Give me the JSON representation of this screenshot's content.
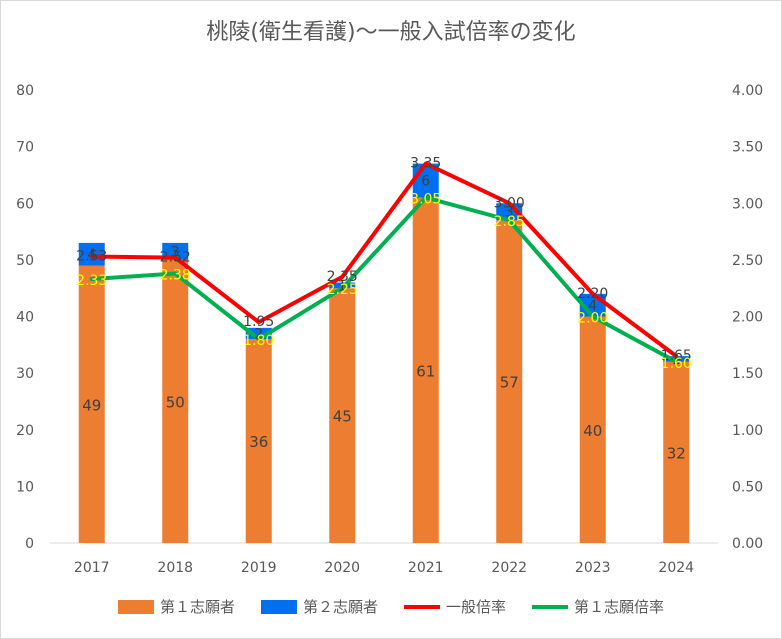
{
  "chart_data": {
    "type": "bar",
    "title": "桃陵(衛生看護)～一般入試倍率の変化",
    "categories": [
      "2017",
      "2018",
      "2019",
      "2020",
      "2021",
      "2022",
      "2023",
      "2024"
    ],
    "y_left": {
      "ylim": [
        0,
        80
      ],
      "ticks": [
        "0",
        "10",
        "20",
        "30",
        "40",
        "50",
        "60",
        "70",
        "80"
      ]
    },
    "y_right": {
      "ylim": [
        0,
        4
      ],
      "ticks": [
        "0.00",
        "0.50",
        "1.00",
        "1.50",
        "2.00",
        "2.50",
        "3.00",
        "3.50",
        "4.00"
      ]
    },
    "grid": false,
    "legend_position": "bottom",
    "series": [
      {
        "name": "第１志願者",
        "kind": "bar",
        "axis": "left",
        "color": "#ED7D31",
        "values": [
          49,
          50,
          36,
          45,
          61,
          57,
          40,
          32
        ],
        "labels": [
          "49",
          "50",
          "36",
          "45",
          "61",
          "57",
          "40",
          "32"
        ]
      },
      {
        "name": "第２志願者",
        "kind": "bar-stacked",
        "axis": "left",
        "color": "#0070F0",
        "values": [
          4,
          3,
          2,
          1,
          6,
          3,
          4,
          1
        ],
        "labels": [
          "4",
          "3",
          "2",
          "1",
          "6",
          "3",
          "4",
          "1"
        ]
      },
      {
        "name": "一般倍率",
        "kind": "line",
        "axis": "right",
        "color": "#FF0000",
        "values": [
          2.53,
          2.52,
          1.95,
          2.35,
          3.35,
          3.0,
          2.2,
          1.65
        ],
        "labels": [
          "2.53",
          "2.52",
          "1.95",
          "2.35",
          "3.35",
          "3.00",
          "2.20",
          "1.65"
        ]
      },
      {
        "name": "第１志願倍率",
        "kind": "line",
        "axis": "right",
        "color": "#00B050",
        "values": [
          2.33,
          2.38,
          1.8,
          2.25,
          3.05,
          2.85,
          2.0,
          1.6
        ],
        "labels": [
          "2.33",
          "2.38",
          "1.80",
          "2.25",
          "3.05",
          "2.85",
          "2.00",
          "1.60"
        ]
      }
    ]
  }
}
